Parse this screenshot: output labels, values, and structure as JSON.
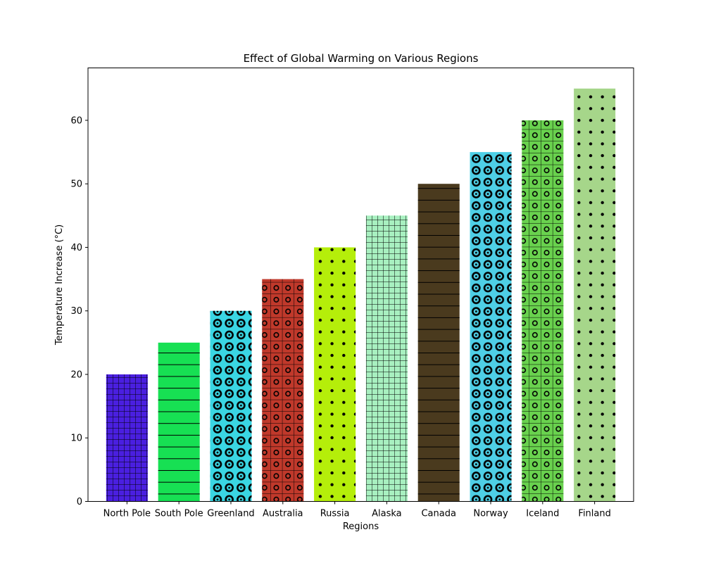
{
  "chart_data": {
    "type": "bar",
    "title": "Effect of Global Warming on Various Regions",
    "xlabel": "Regions",
    "ylabel": "Temperature Increase (°C)",
    "categories": [
      "North Pole",
      "South Pole",
      "Greenland",
      "Australia",
      "Russia",
      "Alaska",
      "Canada",
      "Norway",
      "Iceland",
      "Finland"
    ],
    "values": [
      20,
      25,
      30,
      35,
      40,
      45,
      50,
      55,
      60,
      65
    ],
    "colors": [
      "#4a1fe0",
      "#17e053",
      "#3ad6e3",
      "#c0392b",
      "#b5ee0a",
      "#a8f0c0",
      "#4a3a1e",
      "#4ecfe6",
      "#69d24e",
      "#a6d68a"
    ],
    "hatches": [
      "grid",
      "hlines",
      "rings",
      "grid-rings",
      "dots",
      "grid",
      "hlines",
      "rings",
      "grid-rings",
      "dots"
    ],
    "ylim": [
      0,
      68.25
    ],
    "yticks": [
      0,
      10,
      20,
      30,
      40,
      50,
      60
    ],
    "grid": false,
    "legend": "none"
  }
}
